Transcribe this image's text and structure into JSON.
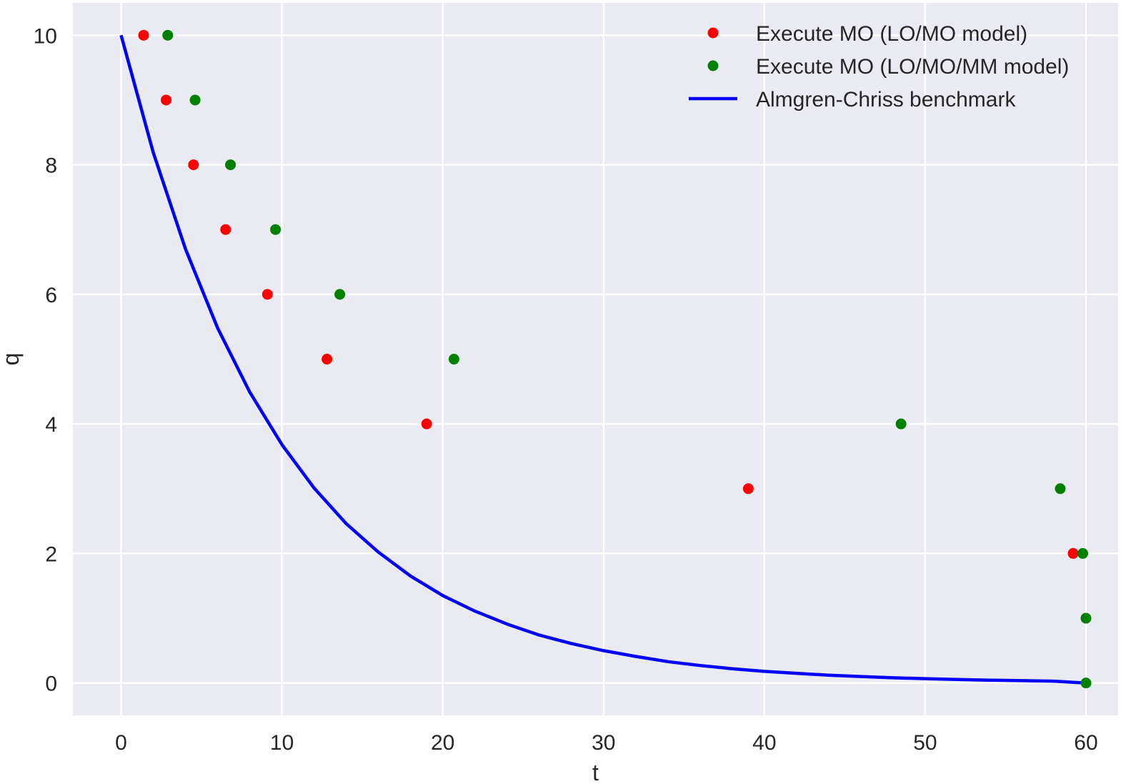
{
  "chart_data": {
    "type": "scatter",
    "xlabel": "t",
    "ylabel": "q",
    "xlim": [
      -3,
      62
    ],
    "ylim": [
      -0.5,
      10.5
    ],
    "xticks": [
      0,
      10,
      20,
      30,
      40,
      50,
      60
    ],
    "yticks": [
      0,
      2,
      4,
      6,
      8,
      10
    ],
    "grid": true,
    "background": "#eaeaf2",
    "legend_position": "top-right",
    "series": [
      {
        "name": "Execute MO (LO/MO model)",
        "kind": "scatter",
        "color": "#ff0000",
        "points": [
          {
            "x": 1.4,
            "y": 10
          },
          {
            "x": 2.8,
            "y": 9
          },
          {
            "x": 4.5,
            "y": 8
          },
          {
            "x": 6.5,
            "y": 7
          },
          {
            "x": 9.1,
            "y": 6
          },
          {
            "x": 12.8,
            "y": 5
          },
          {
            "x": 19.0,
            "y": 4
          },
          {
            "x": 39.0,
            "y": 3
          },
          {
            "x": 59.2,
            "y": 2
          }
        ]
      },
      {
        "name": "Execute MO (LO/MO/MM model)",
        "kind": "scatter",
        "color": "#008000",
        "points": [
          {
            "x": 2.9,
            "y": 10
          },
          {
            "x": 4.6,
            "y": 9
          },
          {
            "x": 6.8,
            "y": 8
          },
          {
            "x": 9.6,
            "y": 7
          },
          {
            "x": 13.6,
            "y": 6
          },
          {
            "x": 20.7,
            "y": 5
          },
          {
            "x": 48.5,
            "y": 4
          },
          {
            "x": 58.4,
            "y": 3
          },
          {
            "x": 59.8,
            "y": 2
          },
          {
            "x": 60.0,
            "y": 1
          },
          {
            "x": 60.0,
            "y": 0
          }
        ]
      },
      {
        "name": "Almgren-Chriss benchmark",
        "kind": "line",
        "color": "#0000ff",
        "x": [
          0,
          2,
          4,
          6,
          8,
          10,
          12,
          14,
          16,
          18,
          20,
          22,
          24,
          26,
          28,
          30,
          32,
          34,
          36,
          38,
          40,
          42,
          44,
          46,
          48,
          50,
          52,
          54,
          56,
          58,
          60
        ],
        "y": [
          10.0,
          8.19,
          6.7,
          5.48,
          4.49,
          3.68,
          3.01,
          2.46,
          2.02,
          1.65,
          1.35,
          1.11,
          0.91,
          0.74,
          0.61,
          0.5,
          0.41,
          0.33,
          0.27,
          0.22,
          0.18,
          0.15,
          0.12,
          0.1,
          0.08,
          0.067,
          0.054,
          0.044,
          0.036,
          0.029,
          0.0
        ]
      }
    ]
  }
}
